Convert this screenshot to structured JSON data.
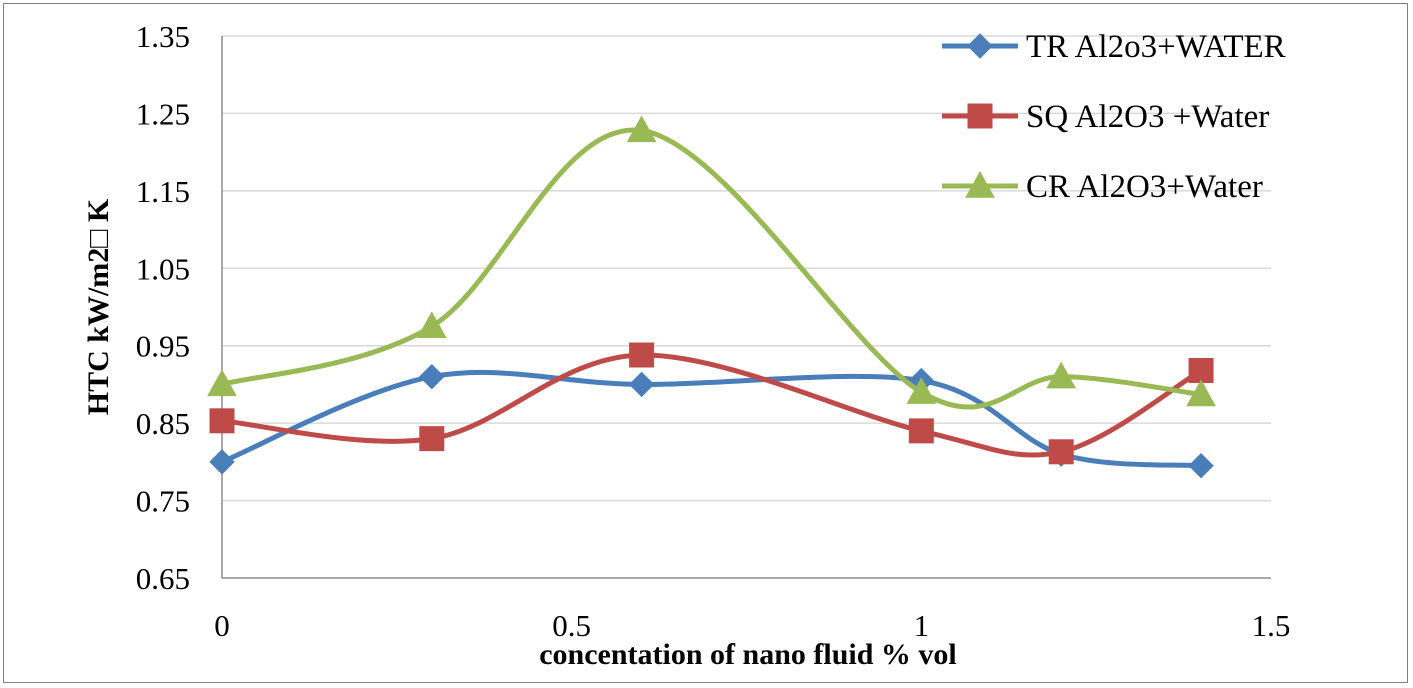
{
  "chart_data": {
    "type": "line",
    "xlabel": "concentation of nano fluid  % vol",
    "ylabel": "HTC kW/m2□ K",
    "xlim": [
      0,
      1.5
    ],
    "ylim": [
      0.65,
      1.35
    ],
    "x_ticks": [
      "0",
      "0.5",
      "1",
      "1.5"
    ],
    "y_ticks": [
      "0.65",
      "0.75",
      "0.85",
      "0.95",
      "1.05",
      "1.15",
      "1.25",
      "1.35"
    ],
    "grid": "horizontal",
    "legend_position": "top-right",
    "smoothed": true,
    "series": [
      {
        "name": "TR  Al2o3+WATER",
        "color": "#4a7ebb",
        "marker": "diamond",
        "x": [
          0,
          0.3,
          0.6,
          1.0,
          1.2,
          1.4
        ],
        "y": [
          0.8,
          0.91,
          0.9,
          0.905,
          0.81,
          0.795
        ]
      },
      {
        "name": "SQ Al2O3 +Water",
        "color": "#be4b48",
        "marker": "square",
        "x": [
          0,
          0.3,
          0.6,
          1.0,
          1.2,
          1.4
        ],
        "y": [
          0.853,
          0.83,
          0.938,
          0.84,
          0.813,
          0.918
        ]
      },
      {
        "name": "CR Al2O3+Water",
        "color": "#98b954",
        "marker": "triangle",
        "x": [
          0,
          0.3,
          0.6,
          1.0,
          1.2,
          1.4
        ],
        "y": [
          0.9,
          0.975,
          1.228,
          0.89,
          0.91,
          0.887
        ]
      }
    ]
  }
}
